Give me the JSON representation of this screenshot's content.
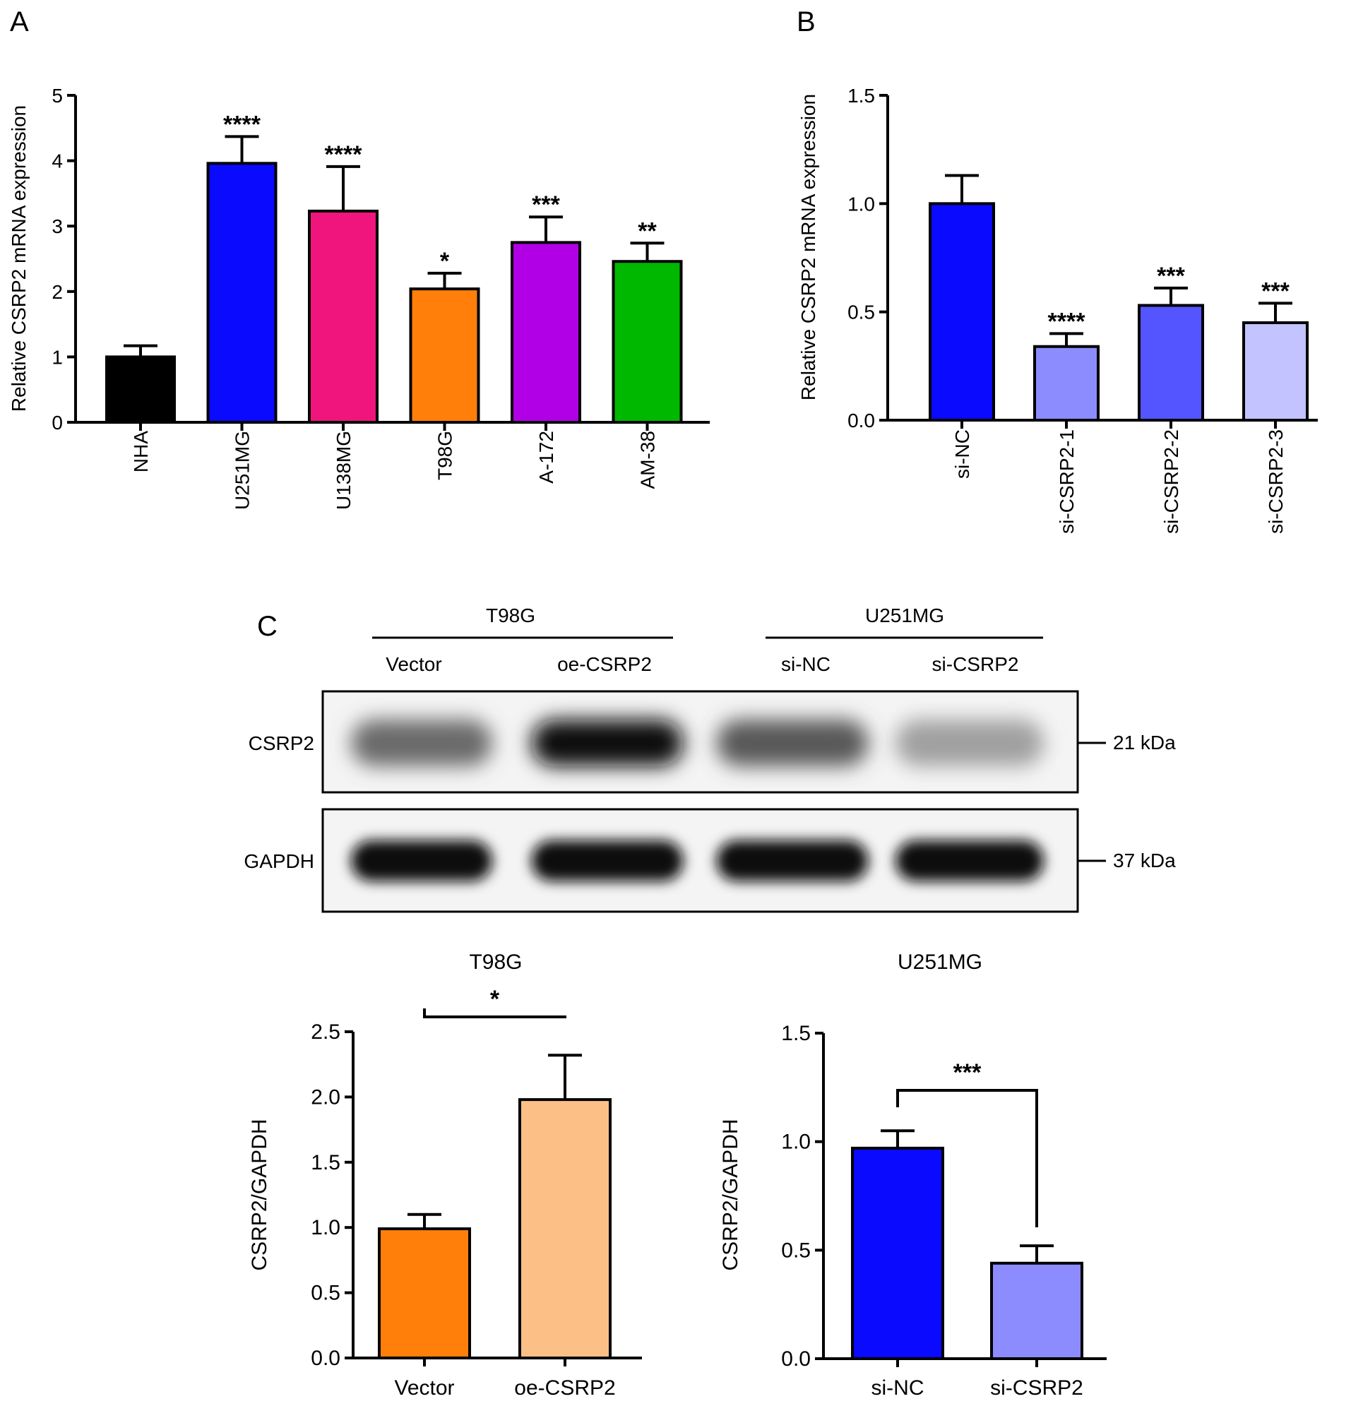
{
  "panel_labels": {
    "a": "A",
    "b": "B",
    "c": "C"
  },
  "chart_data": [
    {
      "id": "A",
      "type": "bar",
      "ylabel": "Relative CSRP2 mRNA expression",
      "ylim": [
        0,
        5
      ],
      "yticks": [
        "0",
        "1",
        "2",
        "3",
        "4",
        "5"
      ],
      "categories": [
        "NHA",
        "U251MG",
        "U138MG",
        "T98G",
        "A-172",
        "AM-38"
      ],
      "values": [
        1.0,
        3.96,
        3.23,
        2.04,
        2.75,
        2.46
      ],
      "errors": [
        0.17,
        0.41,
        0.68,
        0.24,
        0.39,
        0.28
      ],
      "significance": [
        "",
        "****",
        "****",
        "*",
        "***",
        "**"
      ],
      "colors": [
        "#000000",
        "#0a0aff",
        "#f0157d",
        "#ff7f0a",
        "#b200e6",
        "#00b800"
      ]
    },
    {
      "id": "B",
      "type": "bar",
      "ylabel": "Relative CSRP2 mRNA expression",
      "ylim": [
        0,
        1.5
      ],
      "yticks": [
        "0.0",
        "0.5",
        "1.0",
        "1.5"
      ],
      "categories": [
        "si-NC",
        "si-CSRP2-1",
        "si-CSRP2-2",
        "si-CSRP2-3"
      ],
      "values": [
        1.0,
        0.34,
        0.53,
        0.45
      ],
      "errors": [
        0.13,
        0.06,
        0.08,
        0.09
      ],
      "significance": [
        "",
        "****",
        "***",
        "***"
      ],
      "colors": [
        "#0a0aff",
        "#8c8cff",
        "#5555ff",
        "#c3c3ff"
      ]
    },
    {
      "id": "C-T98G",
      "type": "bar",
      "title": "T98G",
      "ylabel": "CSRP2/GAPDH",
      "ylim": [
        0,
        2.5
      ],
      "yticks": [
        "0.0",
        "0.5",
        "1.0",
        "1.5",
        "2.0",
        "2.5"
      ],
      "categories": [
        "Vector",
        "oe-CSRP2"
      ],
      "values": [
        0.99,
        1.98
      ],
      "errors": [
        0.11,
        0.34
      ],
      "bracket": "*",
      "colors": [
        "#ff7f0a",
        "#fcc086"
      ]
    },
    {
      "id": "C-U251MG",
      "type": "bar",
      "title": "U251MG",
      "ylabel": "CSRP2/GAPDH",
      "ylim": [
        0,
        1.5
      ],
      "yticks": [
        "0.0",
        "0.5",
        "1.0",
        "1.5"
      ],
      "categories": [
        "si-NC",
        "si-CSRP2"
      ],
      "values": [
        0.97,
        0.44
      ],
      "errors": [
        0.08,
        0.08
      ],
      "bracket": "***",
      "colors": [
        "#0a0aff",
        "#8c8cff"
      ]
    }
  ],
  "blot": {
    "groups": [
      "T98G",
      "U251MG"
    ],
    "lanes": [
      "Vector",
      "oe-CSRP2",
      "si-NC",
      "si-CSRP2"
    ],
    "rows": [
      {
        "label": "CSRP2",
        "size": "21 kDa",
        "intensity": [
          0.55,
          0.95,
          0.62,
          0.32
        ]
      },
      {
        "label": "GAPDH",
        "size": "37 kDa",
        "intensity": [
          0.95,
          0.93,
          0.94,
          0.95
        ]
      }
    ]
  }
}
